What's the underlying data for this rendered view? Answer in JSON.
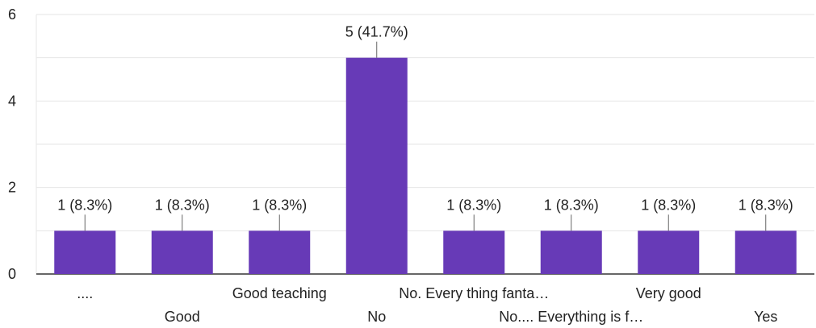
{
  "chart_data": {
    "type": "bar",
    "categories": [
      "....",
      "Good",
      "Good teaching",
      "No",
      "No. Every thing fanta…",
      "No.... Everything is f…",
      "Very good",
      "Yes"
    ],
    "values": [
      1,
      1,
      1,
      5,
      1,
      1,
      1,
      1
    ],
    "data_labels": [
      "1 (8.3%)",
      "1 (8.3%)",
      "1 (8.3%)",
      "5 (41.7%)",
      "1 (8.3%)",
      "1 (8.3%)",
      "1 (8.3%)",
      "1 (8.3%)"
    ],
    "yticks": [
      0,
      2,
      4,
      6
    ],
    "ylim": [
      0,
      6
    ],
    "grid": true,
    "title": "",
    "xlabel": "",
    "ylabel": "",
    "colors": {
      "bar": "#673AB7",
      "grid": "#e6e6e6",
      "axis": "#333333",
      "text": "#222222",
      "leader": "#666666"
    }
  }
}
